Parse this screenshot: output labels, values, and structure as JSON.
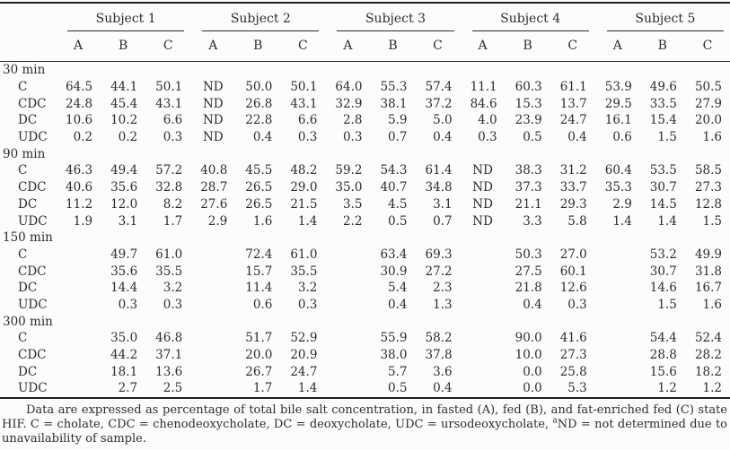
{
  "page": {
    "background": "#fcfcfa",
    "text_color": "#2f2d2b",
    "rule_color": "#1e1e1e"
  },
  "table": {
    "subjects": [
      "Subject 1",
      "Subject 2",
      "Subject 3",
      "Subject 4",
      "Subject 5"
    ],
    "col_headers": [
      "A",
      "B",
      "C"
    ],
    "groups": [
      {
        "label": "30 min",
        "rows": [
          {
            "label": "C",
            "values": [
              "64.5",
              "44.1",
              "50.1",
              "ND",
              "50.0",
              "50.1",
              "64.0",
              "55.3",
              "57.4",
              "11.1",
              "60.3",
              "61.1",
              "53.9",
              "49.6",
              "50.5"
            ]
          },
          {
            "label": "CDC",
            "values": [
              "24.8",
              "45.4",
              "43.1",
              "ND",
              "26.8",
              "43.1",
              "32.9",
              "38.1",
              "37.2",
              "84.6",
              "15.3",
              "13.7",
              "29.5",
              "33.5",
              "27.9"
            ]
          },
          {
            "label": "DC",
            "values": [
              "10.6",
              "10.2",
              "6.6",
              "ND",
              "22.8",
              "6.6",
              "2.8",
              "5.9",
              "5.0",
              "4.0",
              "23.9",
              "24.7",
              "16.1",
              "15.4",
              "20.0"
            ]
          },
          {
            "label": "UDC",
            "values": [
              "0.2",
              "0.2",
              "0.3",
              "ND",
              "0.4",
              "0.3",
              "0.3",
              "0.7",
              "0.4",
              "0.3",
              "0.5",
              "0.4",
              "0.6",
              "1.5",
              "1.6"
            ]
          }
        ]
      },
      {
        "label": "90 min",
        "rows": [
          {
            "label": "C",
            "values": [
              "46.3",
              "49.4",
              "57.2",
              "40.8",
              "45.5",
              "48.2",
              "59.2",
              "54.3",
              "61.4",
              "ND",
              "38.3",
              "31.2",
              "60.4",
              "53.5",
              "58.5"
            ]
          },
          {
            "label": "CDC",
            "values": [
              "40.6",
              "35.6",
              "32.8",
              "28.7",
              "26.5",
              "29.0",
              "35.0",
              "40.7",
              "34.8",
              "ND",
              "37.3",
              "33.7",
              "35.3",
              "30.7",
              "27.3"
            ]
          },
          {
            "label": "DC",
            "values": [
              "11.2",
              "12.0",
              "8.2",
              "27.6",
              "26.5",
              "21.5",
              "3.5",
              "4.5",
              "3.1",
              "ND",
              "21.1",
              "29.3",
              "2.9",
              "14.5",
              "12.8"
            ]
          },
          {
            "label": "UDC",
            "values": [
              "1.9",
              "3.1",
              "1.7",
              "2.9",
              "1.6",
              "1.4",
              "2.2",
              "0.5",
              "0.7",
              "ND",
              "3.3",
              "5.8",
              "1.4",
              "1.4",
              "1.5"
            ]
          }
        ]
      },
      {
        "label": "150 min",
        "rows": [
          {
            "label": "C",
            "values": [
              "",
              "49.7",
              "61.0",
              "",
              "72.4",
              "61.0",
              "",
              "63.4",
              "69.3",
              "",
              "50.3",
              "27.0",
              "",
              "53.2",
              "49.9"
            ]
          },
          {
            "label": "CDC",
            "values": [
              "",
              "35.6",
              "35.5",
              "",
              "15.7",
              "35.5",
              "",
              "30.9",
              "27.2",
              "",
              "27.5",
              "60.1",
              "",
              "30.7",
              "31.8"
            ]
          },
          {
            "label": "DC",
            "values": [
              "",
              "14.4",
              "3.2",
              "",
              "11.4",
              "3.2",
              "",
              "5.4",
              "2.3",
              "",
              "21.8",
              "12.6",
              "",
              "14.6",
              "16.7"
            ]
          },
          {
            "label": "UDC",
            "values": [
              "",
              "0.3",
              "0.3",
              "",
              "0.6",
              "0.3",
              "",
              "0.4",
              "1.3",
              "",
              "0.4",
              "0.3",
              "",
              "1.5",
              "1.6"
            ]
          }
        ]
      },
      {
        "label": "300 min",
        "rows": [
          {
            "label": "C",
            "values": [
              "",
              "35.0",
              "46.8",
              "",
              "51.7",
              "52.9",
              "",
              "55.9",
              "58.2",
              "",
              "90.0",
              "41.6",
              "",
              "54.4",
              "52.4"
            ]
          },
          {
            "label": "CDC",
            "values": [
              "",
              "44.2",
              "37.1",
              "",
              "20.0",
              "20.9",
              "",
              "38.0",
              "37.8",
              "",
              "10.0",
              "27.3",
              "",
              "28.8",
              "28.2"
            ]
          },
          {
            "label": "DC",
            "values": [
              "",
              "18.1",
              "13.6",
              "",
              "26.7",
              "24.7",
              "",
              "5.7",
              "3.6",
              "",
              "0.0",
              "25.8",
              "",
              "15.6",
              "18.2"
            ]
          },
          {
            "label": "UDC",
            "values": [
              "",
              "2.7",
              "2.5",
              "",
              "1.7",
              "1.4",
              "",
              "0.5",
              "0.4",
              "",
              "0.0",
              "5.3",
              "",
              "1.2",
              "1.2"
            ]
          }
        ]
      }
    ],
    "footnote": {
      "part1": "Data are expressed as percentage of total bile salt concentration, in fasted (A), fed (B), and fat-enriched fed (C) state HIF. C = cholate, CDC = chenodeoxycholate, DC = deoxycholate, UDC = ursodeoxycholate, ",
      "sup": "a",
      "part2": "ND = not determined due to unavailability of sample."
    }
  }
}
